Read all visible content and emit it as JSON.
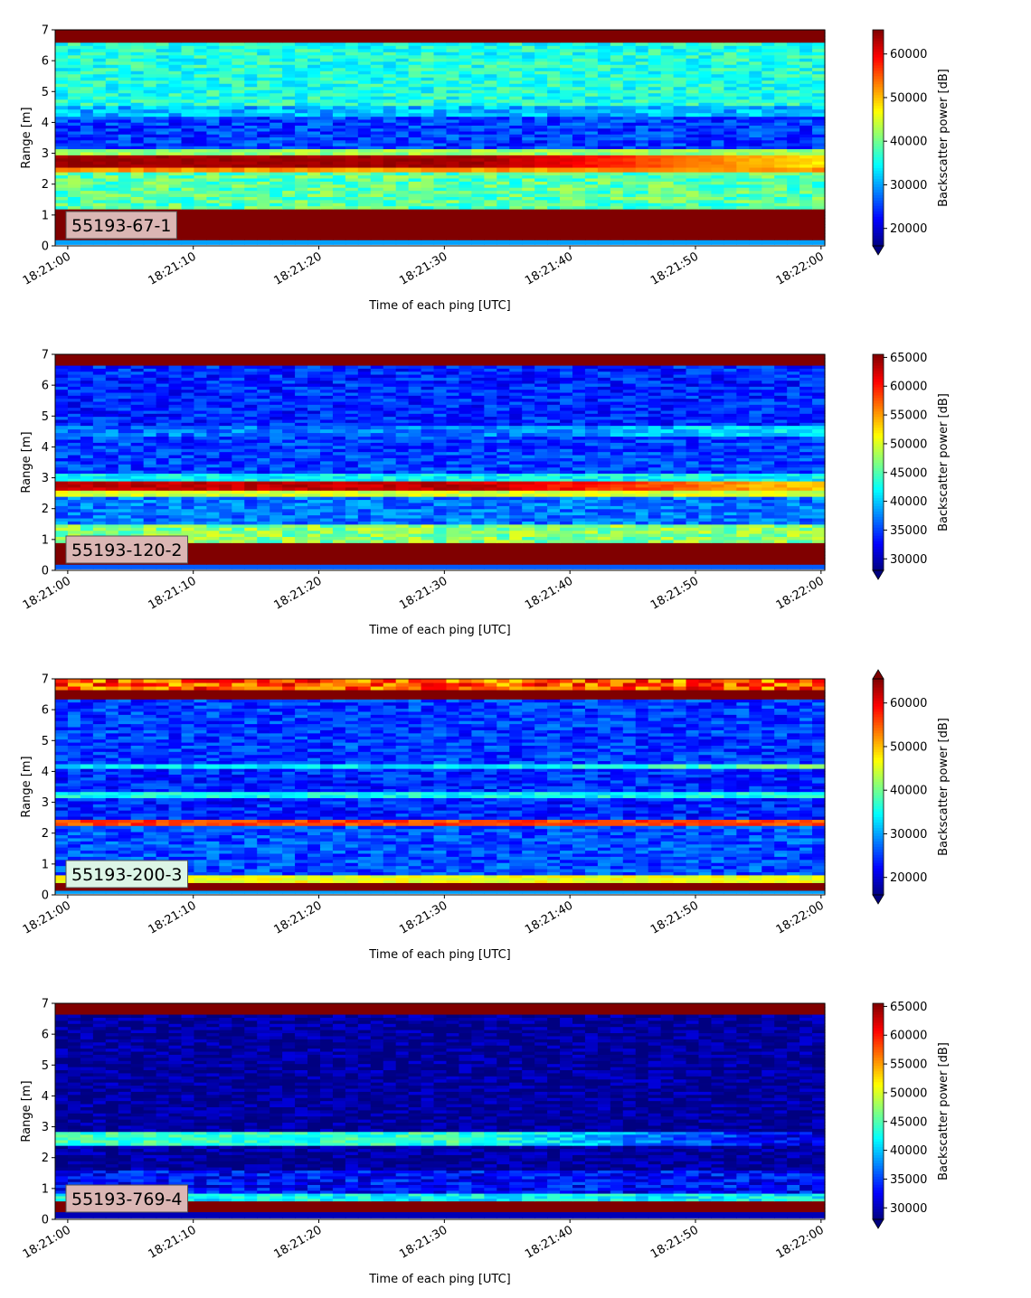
{
  "figure": {
    "xlabel": "Time of each ping [UTC]",
    "ylabel": "Range [m]",
    "colorbar_label": "Backscatter power [dB]",
    "colormap": "jet"
  },
  "chart_data": [
    {
      "type": "heatmap",
      "tag": "55193-67-1",
      "tag_color": "#dbb6b4",
      "x_ticks": [
        "18:21:00",
        "18:21:10",
        "18:21:20",
        "18:21:30",
        "18:21:40",
        "18:21:50",
        "18:22:00"
      ],
      "xlim_seconds": [
        -1,
        60.3
      ],
      "y_ticks": [
        "0",
        "1",
        "2",
        "3",
        "4",
        "5",
        "6",
        "7"
      ],
      "ylim": [
        0,
        7
      ],
      "colorbar_ticks": [
        20000,
        30000,
        40000,
        50000,
        60000
      ],
      "colorbar_ticks_labels": [
        "20000",
        "30000",
        "40000",
        "50000",
        "60000"
      ],
      "vmin": 16000,
      "vmax": 65535,
      "colorbar_extend": "min",
      "bands": [
        {
          "y": 0.05,
          "h": 0.15,
          "v": 30000,
          "j": 0,
          "trend": 0
        },
        {
          "y": 0.2,
          "h": 1.0,
          "v": 65535,
          "j": 0,
          "trend": 0
        },
        {
          "y": 1.2,
          "h": 1.2,
          "v": 39000,
          "j": 4500,
          "trend": 0
        },
        {
          "y": 2.4,
          "h": 0.15,
          "v": 52000,
          "j": 2000,
          "trend": 0
        },
        {
          "y": 2.55,
          "h": 0.4,
          "v": 64000,
          "j": 1000,
          "trend": -16000
        },
        {
          "y": 2.95,
          "h": 0.2,
          "v": 42000,
          "j": 3000,
          "trend": 0
        },
        {
          "y": 3.15,
          "h": 1.05,
          "v": 25000,
          "j": 4000,
          "trend": 0
        },
        {
          "y": 4.2,
          "h": 0.35,
          "v": 31000,
          "j": 4000,
          "trend": 0
        },
        {
          "y": 4.55,
          "h": 2.05,
          "v": 36000,
          "j": 4000,
          "trend": 0
        },
        {
          "y": 6.6,
          "h": 0.4,
          "v": 65535,
          "j": 0,
          "trend": 0
        }
      ]
    },
    {
      "type": "heatmap",
      "tag": "55193-120-2",
      "tag_color": "#dbb6b4",
      "x_ticks": [
        "18:21:00",
        "18:21:10",
        "18:21:20",
        "18:21:30",
        "18:21:40",
        "18:21:50",
        "18:22:00"
      ],
      "xlim_seconds": [
        -1,
        60.3
      ],
      "y_ticks": [
        "0",
        "1",
        "2",
        "3",
        "4",
        "5",
        "6",
        "7"
      ],
      "ylim": [
        0,
        7
      ],
      "colorbar_ticks": [
        30000,
        35000,
        40000,
        45000,
        50000,
        55000,
        60000,
        65000
      ],
      "colorbar_ticks_labels": [
        "30000",
        "35000",
        "40000",
        "45000",
        "50000",
        "55000",
        "60000",
        "65000"
      ],
      "vmin": 28000,
      "vmax": 65535,
      "colorbar_extend": "min",
      "bands": [
        {
          "y": 0.05,
          "h": 0.15,
          "v": 36000,
          "j": 0,
          "trend": 0
        },
        {
          "y": 0.2,
          "h": 0.7,
          "v": 65535,
          "j": 0,
          "trend": 0
        },
        {
          "y": 0.9,
          "h": 0.6,
          "v": 47000,
          "j": 3500,
          "trend": 0
        },
        {
          "y": 1.5,
          "h": 0.9,
          "v": 37000,
          "j": 3000,
          "trend": 0
        },
        {
          "y": 2.4,
          "h": 0.2,
          "v": 50000,
          "j": 2000,
          "trend": 0
        },
        {
          "y": 2.6,
          "h": 0.3,
          "v": 63000,
          "j": 1500,
          "trend": -10000
        },
        {
          "y": 2.9,
          "h": 0.25,
          "v": 42000,
          "j": 2500,
          "trend": 0
        },
        {
          "y": 3.15,
          "h": 1.2,
          "v": 35000,
          "j": 3000,
          "trend": 0
        },
        {
          "y": 4.35,
          "h": 0.35,
          "v": 37000,
          "j": 3000,
          "trend": 5000
        },
        {
          "y": 4.7,
          "h": 1.95,
          "v": 34000,
          "j": 3000,
          "trend": 0
        },
        {
          "y": 6.65,
          "h": 0.35,
          "v": 65535,
          "j": 0,
          "trend": 0
        }
      ]
    },
    {
      "type": "heatmap",
      "tag": "55193-200-3",
      "tag_color": "#dcf5e6",
      "x_ticks": [
        "18:21:00",
        "18:21:10",
        "18:21:20",
        "18:21:30",
        "18:21:40",
        "18:21:50",
        "18:22:00"
      ],
      "xlim_seconds": [
        -1,
        60.3
      ],
      "y_ticks": [
        "0",
        "1",
        "2",
        "3",
        "4",
        "5",
        "6",
        "7"
      ],
      "ylim": [
        0,
        7
      ],
      "colorbar_ticks": [
        20000,
        30000,
        40000,
        50000,
        60000
      ],
      "colorbar_ticks_labels": [
        "20000",
        "30000",
        "40000",
        "50000",
        "60000"
      ],
      "vmin": 16000,
      "vmax": 65535,
      "colorbar_extend": "both",
      "bands": [
        {
          "y": 0.05,
          "h": 0.1,
          "v": 30000,
          "j": 0,
          "trend": 0
        },
        {
          "y": 0.15,
          "h": 0.25,
          "v": 65535,
          "j": 0,
          "trend": 0
        },
        {
          "y": 0.4,
          "h": 0.25,
          "v": 46000,
          "j": 2500,
          "trend": 0
        },
        {
          "y": 0.65,
          "h": 1.6,
          "v": 26000,
          "j": 4000,
          "trend": 0
        },
        {
          "y": 2.25,
          "h": 0.2,
          "v": 56000,
          "j": 3000,
          "trend": 0
        },
        {
          "y": 2.45,
          "h": 0.7,
          "v": 24000,
          "j": 4000,
          "trend": 0
        },
        {
          "y": 3.15,
          "h": 0.2,
          "v": 35000,
          "j": 3000,
          "trend": 0
        },
        {
          "y": 3.35,
          "h": 0.75,
          "v": 24000,
          "j": 4000,
          "trend": 0
        },
        {
          "y": 4.1,
          "h": 0.15,
          "v": 33000,
          "j": 3000,
          "trend": 8000
        },
        {
          "y": 4.25,
          "h": 2.1,
          "v": 25000,
          "j": 4000,
          "trend": 0
        },
        {
          "y": 6.35,
          "h": 0.3,
          "v": 65535,
          "j": 0,
          "trend": 0
        },
        {
          "y": 6.65,
          "h": 0.35,
          "v": 55000,
          "j": 7000,
          "trend": 0
        }
      ]
    },
    {
      "type": "heatmap",
      "tag": "55193-769-4",
      "tag_color": "#dbb6b4",
      "x_ticks": [
        "18:21:00",
        "18:21:10",
        "18:21:20",
        "18:21:30",
        "18:21:40",
        "18:21:50",
        "18:22:00"
      ],
      "xlim_seconds": [
        -1,
        60.3
      ],
      "y_ticks": [
        "0",
        "1",
        "2",
        "3",
        "4",
        "5",
        "6",
        "7"
      ],
      "ylim": [
        0,
        7
      ],
      "colorbar_ticks": [
        30000,
        35000,
        40000,
        45000,
        50000,
        55000,
        60000,
        65000
      ],
      "colorbar_ticks_labels": [
        "30000",
        "35000",
        "40000",
        "45000",
        "50000",
        "55000",
        "60000",
        "65000"
      ],
      "vmin": 28000,
      "vmax": 65535,
      "colorbar_extend": "min",
      "bands": [
        {
          "y": 0.05,
          "h": 0.2,
          "v": 30000,
          "j": 0,
          "trend": 0
        },
        {
          "y": 0.25,
          "h": 0.35,
          "v": 65535,
          "j": 0,
          "trend": 0
        },
        {
          "y": 0.6,
          "h": 0.25,
          "v": 42000,
          "j": 3000,
          "trend": 0
        },
        {
          "y": 0.85,
          "h": 0.75,
          "v": 33000,
          "j": 3500,
          "trend": 0
        },
        {
          "y": 1.6,
          "h": 0.8,
          "v": 29000,
          "j": 2500,
          "trend": 0
        },
        {
          "y": 2.4,
          "h": 0.45,
          "v": 44000,
          "j": 3000,
          "trend": -13000
        },
        {
          "y": 2.85,
          "h": 3.8,
          "v": 29000,
          "j": 2500,
          "trend": 0
        },
        {
          "y": 6.65,
          "h": 0.35,
          "v": 65535,
          "j": 0,
          "trend": 0
        }
      ]
    }
  ]
}
